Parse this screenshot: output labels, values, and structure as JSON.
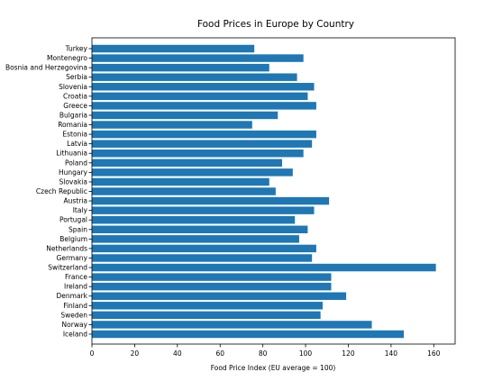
{
  "chart_data": {
    "type": "bar",
    "orientation": "horizontal",
    "title": "Food Prices in Europe by Country",
    "xlabel": "Food Price Index (EU average = 100)",
    "ylabel": "",
    "xlim": [
      0,
      170
    ],
    "xticks": [
      0,
      20,
      40,
      60,
      80,
      100,
      120,
      140,
      160
    ],
    "grid": false,
    "bar_color": "#1f77b4",
    "categories": [
      "Iceland",
      "Norway",
      "Sweden",
      "Finland",
      "Denmark",
      "Ireland",
      "France",
      "Switzerland",
      "Germany",
      "Netherlands",
      "Belgium",
      "Spain",
      "Portugal",
      "Italy",
      "Austria",
      "Czech Republic",
      "Slovakia",
      "Hungary",
      "Poland",
      "Lithuania",
      "Latvia",
      "Estonia",
      "Romania",
      "Bulgaria",
      "Greece",
      "Croatia",
      "Slovenia",
      "Serbia",
      "Bosnia and Herzegovina",
      "Montenegro",
      "Turkey"
    ],
    "values": [
      146,
      131,
      107,
      108,
      119,
      112,
      112,
      161,
      103,
      105,
      97,
      101,
      95,
      104,
      111,
      86,
      83,
      94,
      89,
      99,
      103,
      105,
      75,
      87,
      105,
      101,
      104,
      96,
      83,
      99,
      76
    ]
  }
}
